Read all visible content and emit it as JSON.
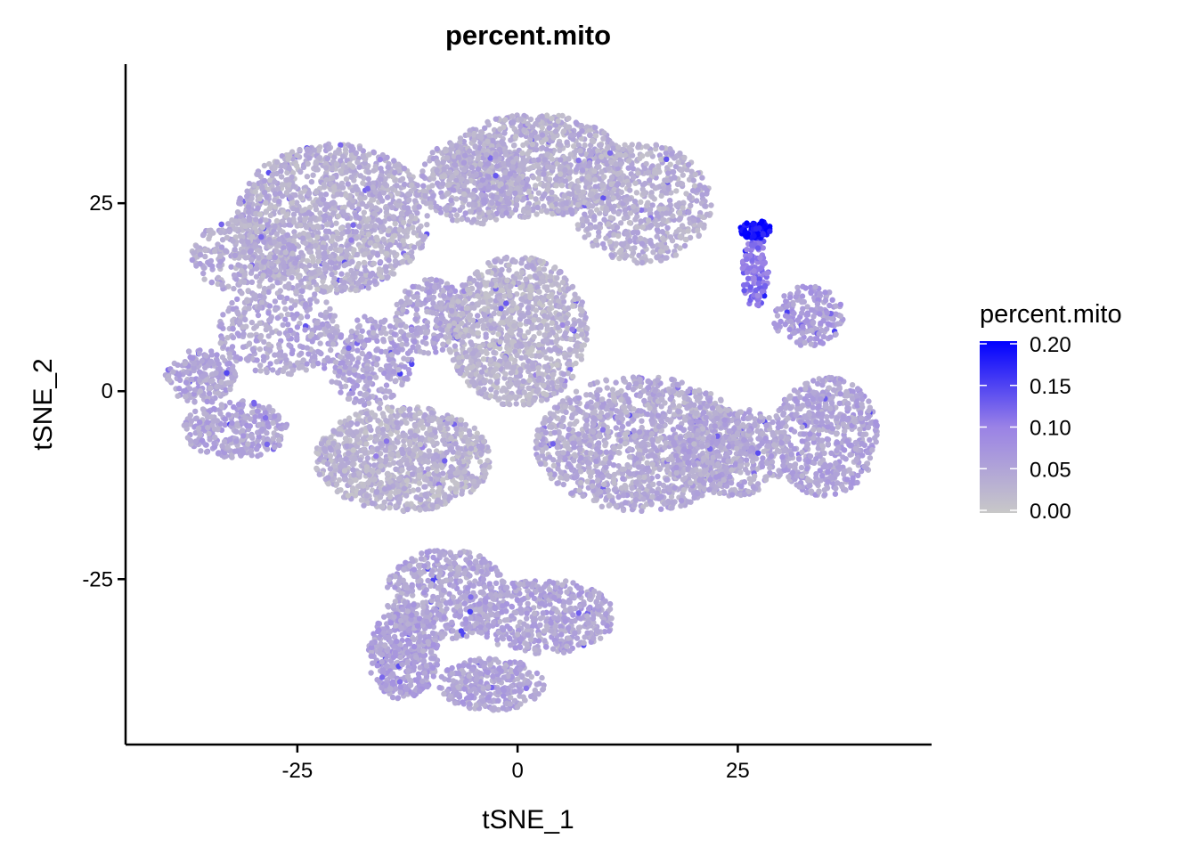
{
  "chart_data": {
    "type": "scatter",
    "title": "percent.mito",
    "xlabel": "tSNE_1",
    "ylabel": "tSNE_2",
    "xlim": [
      -44.5,
      47
    ],
    "ylim": [
      -47,
      43.5
    ],
    "x_ticks": [
      -25,
      0,
      25
    ],
    "y_ticks": [
      -25,
      0,
      25
    ],
    "x_tick_labels": [
      "-25",
      "0",
      "25"
    ],
    "y_tick_labels": [
      "-25",
      "0",
      "25"
    ],
    "grid": false,
    "legend": {
      "title": "percent.mito",
      "placement": "right",
      "range": [
        0,
        0.2
      ],
      "ticks": [
        0.0,
        0.05,
        0.1,
        0.15,
        0.2
      ],
      "tick_labels": [
        "0.00",
        "0.05",
        "0.10",
        "0.15",
        "0.20"
      ],
      "low_color": "#c8c8c8",
      "high_color": "#0000ff"
    },
    "clusters": [
      {
        "cx": -21,
        "cy": 23,
        "rx": 11,
        "ry": 10,
        "n": 1400,
        "val": 0.035
      },
      {
        "cx": -31,
        "cy": 18,
        "rx": 6,
        "ry": 5,
        "n": 300,
        "val": 0.04
      },
      {
        "cx": -27,
        "cy": 8,
        "rx": 7,
        "ry": 6,
        "n": 350,
        "val": 0.045
      },
      {
        "cx": -36,
        "cy": 2,
        "rx": 4,
        "ry": 3.5,
        "n": 200,
        "val": 0.05
      },
      {
        "cx": -32,
        "cy": -5,
        "rx": 6,
        "ry": 4,
        "n": 300,
        "val": 0.05
      },
      {
        "cx": -17,
        "cy": 4,
        "rx": 5,
        "ry": 6,
        "n": 300,
        "val": 0.05
      },
      {
        "cx": -13,
        "cy": -9,
        "rx": 10,
        "ry": 7,
        "n": 1100,
        "val": 0.03
      },
      {
        "cx": -10,
        "cy": 10,
        "rx": 4,
        "ry": 5,
        "n": 250,
        "val": 0.05
      },
      {
        "cx": 0,
        "cy": 8,
        "rx": 8,
        "ry": 10,
        "n": 1100,
        "val": 0.03
      },
      {
        "cx": 2,
        "cy": 30,
        "rx": 10,
        "ry": 7,
        "n": 900,
        "val": 0.035
      },
      {
        "cx": 14,
        "cy": 25,
        "rx": 8,
        "ry": 8,
        "n": 650,
        "val": 0.035
      },
      {
        "cx": -5,
        "cy": 28,
        "rx": 6,
        "ry": 6,
        "n": 400,
        "val": 0.04
      },
      {
        "cx": 14,
        "cy": -7,
        "rx": 12,
        "ry": 9,
        "n": 1400,
        "val": 0.04
      },
      {
        "cx": 24,
        "cy": -8,
        "rx": 7,
        "ry": 6,
        "n": 500,
        "val": 0.045
      },
      {
        "cx": 35,
        "cy": -6,
        "rx": 6,
        "ry": 8,
        "n": 600,
        "val": 0.05
      },
      {
        "cx": 33,
        "cy": 10,
        "rx": 4,
        "ry": 4,
        "n": 180,
        "val": 0.06
      },
      {
        "cx": 27,
        "cy": 16,
        "rx": 1.5,
        "ry": 5,
        "n": 120,
        "val": 0.11
      },
      {
        "cx": 27,
        "cy": 21.5,
        "rx": 1.8,
        "ry": 1.2,
        "n": 80,
        "val": 0.19
      },
      {
        "cx": -8,
        "cy": -27,
        "rx": 7,
        "ry": 6,
        "n": 500,
        "val": 0.05
      },
      {
        "cx": -13,
        "cy": -35,
        "rx": 4,
        "ry": 6,
        "n": 400,
        "val": 0.055
      },
      {
        "cx": 3,
        "cy": -30,
        "rx": 8,
        "ry": 5,
        "n": 500,
        "val": 0.05
      },
      {
        "cx": -3,
        "cy": -39,
        "rx": 6,
        "ry": 3.5,
        "n": 300,
        "val": 0.05
      }
    ]
  }
}
